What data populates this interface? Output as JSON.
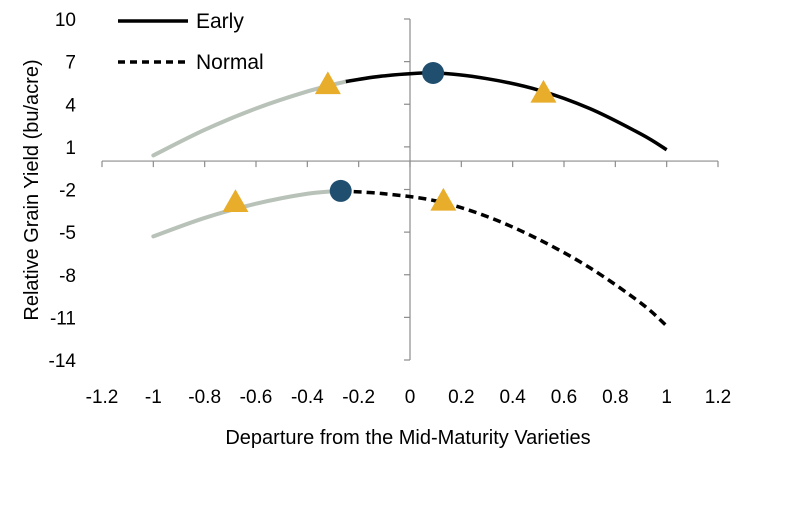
{
  "chart_data": {
    "type": "line",
    "title": "",
    "xlabel": "Departure from the Mid-Maturity Varieties",
    "ylabel": "Relative Grain Yield (bu/acre)",
    "xlim": [
      -1.2,
      1.2
    ],
    "ylim": [
      -14,
      10
    ],
    "x_ticks": [
      -1.2,
      -1,
      -0.8,
      -0.6,
      -0.4,
      -0.2,
      0,
      0.2,
      0.4,
      0.6,
      0.8,
      1,
      1.2
    ],
    "x_tick_labels": [
      "-1.2",
      "-1",
      "-0.8",
      "-0.6",
      "-0.4",
      "-0.2",
      "0",
      "0.2",
      "0.4",
      "0.6",
      "0.8",
      "1",
      "1.2"
    ],
    "y_ticks": [
      10,
      7,
      4,
      1,
      -2,
      -5,
      -8,
      -11,
      -14
    ],
    "y_tick_labels": [
      "10",
      "7",
      "4",
      "1",
      "-2",
      "-5",
      "-8",
      "-11",
      "-14"
    ],
    "grid": false,
    "legend_position": "top-left",
    "series": [
      {
        "name": "Early",
        "style": "solid",
        "color": "#000000",
        "extrapolated_color": "#b8c2b8",
        "extrapolated_until_x": -0.25,
        "x": [
          -1,
          -0.8,
          -0.6,
          -0.4,
          -0.25,
          -0.1,
          0.1,
          0.3,
          0.5,
          0.7,
          0.9,
          1
        ],
        "y": [
          0.4,
          2.2,
          3.7,
          4.9,
          5.6,
          6.0,
          6.2,
          5.8,
          5.0,
          3.7,
          1.9,
          0.8
        ]
      },
      {
        "name": "Normal",
        "style": "dashed",
        "color": "#000000",
        "extrapolated_color": "#b8c2b8",
        "extrapolated_until_x": -0.27,
        "x": [
          -1,
          -0.8,
          -0.6,
          -0.4,
          -0.27,
          -0.1,
          0.1,
          0.3,
          0.5,
          0.7,
          0.9,
          1
        ],
        "y": [
          -5.3,
          -4.0,
          -3.0,
          -2.3,
          -2.1,
          -2.3,
          -2.8,
          -3.9,
          -5.5,
          -7.5,
          -10.0,
          -11.6
        ]
      }
    ],
    "markers": [
      {
        "shape": "circle",
        "color": "#1f4e6e",
        "x": 0.09,
        "y": 6.2
      },
      {
        "shape": "circle",
        "color": "#1f4e6e",
        "x": -0.27,
        "y": -2.1
      },
      {
        "shape": "triangle",
        "color": "#e8ad2a",
        "x": -0.32,
        "y": 5.4
      },
      {
        "shape": "triangle",
        "color": "#e8ad2a",
        "x": 0.52,
        "y": 4.8
      },
      {
        "shape": "triangle",
        "color": "#e8ad2a",
        "x": -0.68,
        "y": -2.9
      },
      {
        "shape": "triangle",
        "color": "#e8ad2a",
        "x": 0.13,
        "y": -2.8
      }
    ]
  }
}
